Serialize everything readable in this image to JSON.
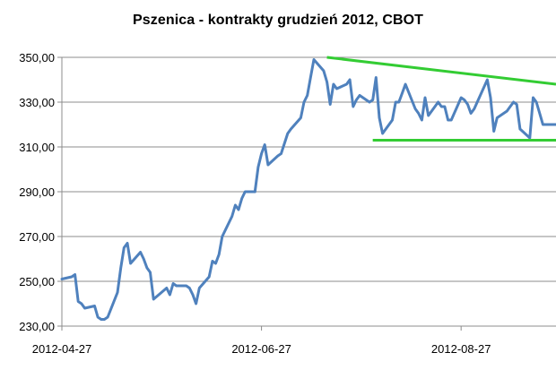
{
  "title": "Pszenica - kontrakty grudzień 2012, CBOT",
  "colors": {
    "series": "#4f81bd",
    "trendline": "#33cc33",
    "grid": "#8c8c8c",
    "axis": "#8c8c8c"
  },
  "chart_data": {
    "type": "line",
    "title": "Pszenica - kontrakty grudzień 2012, CBOT",
    "xlabel": "",
    "ylabel": "",
    "ylim": [
      230,
      350
    ],
    "yticks": [
      "230,00",
      "250,00",
      "270,00",
      "290,00",
      "310,00",
      "330,00",
      "350,00"
    ],
    "ytick_values": [
      230,
      250,
      270,
      290,
      310,
      330,
      350
    ],
    "xticks": [
      "2012-04-27",
      "2012-06-27",
      "2012-08-27"
    ],
    "xlim": [
      "2012-04-27",
      "2012-09-25"
    ],
    "grid": true,
    "legend": "none",
    "series": [
      {
        "x": [
          "2012-04-27",
          "2012-04-30",
          "2012-05-01",
          "2012-05-02",
          "2012-05-03",
          "2012-05-04",
          "2012-05-07",
          "2012-05-08",
          "2012-05-09",
          "2012-05-10",
          "2012-05-11",
          "2012-05-14",
          "2012-05-15",
          "2012-05-16",
          "2012-05-17",
          "2012-05-18",
          "2012-05-21",
          "2012-05-22",
          "2012-05-23",
          "2012-05-24",
          "2012-05-25",
          "2012-05-29",
          "2012-05-30",
          "2012-05-31",
          "2012-06-01",
          "2012-06-04",
          "2012-06-05",
          "2012-06-06",
          "2012-06-07",
          "2012-06-08",
          "2012-06-11",
          "2012-06-12",
          "2012-06-13",
          "2012-06-14",
          "2012-06-15",
          "2012-06-18",
          "2012-06-19",
          "2012-06-20",
          "2012-06-21",
          "2012-06-22",
          "2012-06-25",
          "2012-06-26",
          "2012-06-27",
          "2012-06-28",
          "2012-06-29",
          "2012-07-02",
          "2012-07-03",
          "2012-07-05",
          "2012-07-06",
          "2012-07-09",
          "2012-07-10",
          "2012-07-11",
          "2012-07-12",
          "2012-07-13",
          "2012-07-16",
          "2012-07-17",
          "2012-07-18",
          "2012-07-19",
          "2012-07-20",
          "2012-07-23",
          "2012-07-24",
          "2012-07-25",
          "2012-07-26",
          "2012-07-27",
          "2012-07-30",
          "2012-07-31",
          "2012-08-01",
          "2012-08-02",
          "2012-08-03",
          "2012-08-06",
          "2012-08-07",
          "2012-08-08",
          "2012-08-09",
          "2012-08-10",
          "2012-08-13",
          "2012-08-14",
          "2012-08-15",
          "2012-08-16",
          "2012-08-17",
          "2012-08-20",
          "2012-08-21",
          "2012-08-22",
          "2012-08-23",
          "2012-08-24",
          "2012-08-27",
          "2012-08-28",
          "2012-08-29",
          "2012-08-30",
          "2012-08-31",
          "2012-09-04",
          "2012-09-05",
          "2012-09-06",
          "2012-09-07",
          "2012-09-10",
          "2012-09-11",
          "2012-09-12",
          "2012-09-13",
          "2012-09-14",
          "2012-09-17",
          "2012-09-18",
          "2012-09-19",
          "2012-09-20",
          "2012-09-21",
          "2012-09-24",
          "2012-09-25"
        ],
        "values": [
          251,
          252,
          253,
          241,
          240,
          238,
          239,
          234,
          233,
          233,
          234,
          245,
          256,
          265,
          267,
          258,
          263,
          260,
          256,
          254,
          242,
          247,
          244,
          249,
          248,
          248,
          247,
          244,
          240,
          247,
          252,
          259,
          258,
          262,
          270,
          279,
          284,
          282,
          287,
          290,
          290,
          301,
          307,
          311,
          302,
          306,
          307,
          316,
          318,
          323,
          330,
          333,
          341,
          349,
          344,
          339,
          329,
          338,
          336,
          338,
          340,
          328,
          331,
          333,
          330,
          331,
          341,
          323,
          316,
          322,
          330,
          330,
          334,
          338,
          327,
          325,
          322,
          332,
          324,
          330,
          328,
          328,
          322,
          322,
          332,
          331,
          329,
          325,
          327,
          340,
          332,
          317,
          323,
          326,
          328,
          330,
          329,
          318,
          314,
          332,
          330,
          325,
          320,
          320,
          320
        ]
      }
    ],
    "trendlines": [
      {
        "x": [
          "2012-07-17",
          "2012-09-25"
        ],
        "values": [
          350,
          338
        ]
      },
      {
        "x": [
          "2012-07-31",
          "2012-09-25"
        ],
        "values": [
          313,
          313
        ]
      }
    ]
  }
}
